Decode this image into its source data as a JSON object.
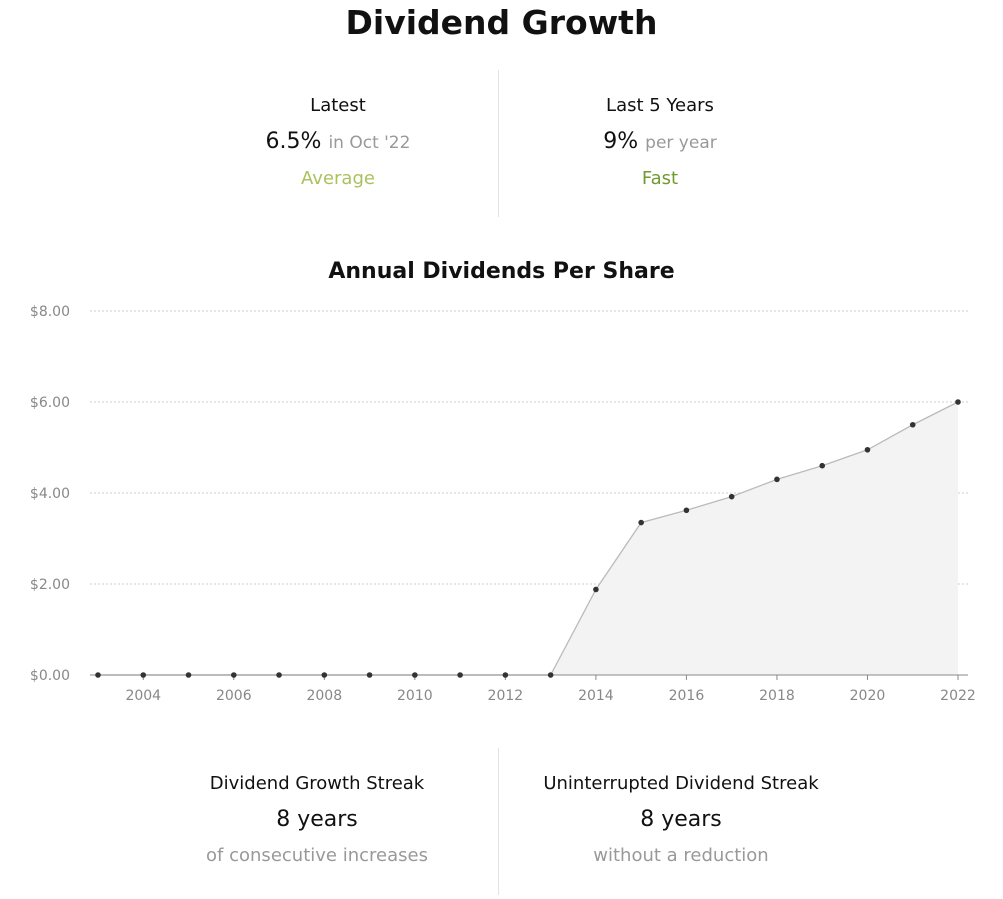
{
  "header": {
    "title": "Dividend Growth"
  },
  "stats_top": [
    {
      "label": "Latest",
      "value": "6.5%",
      "qualifier": "in Oct '22",
      "rating": "Average",
      "rating_color": "#a9c25e"
    },
    {
      "label": "Last 5 Years",
      "value": "9%",
      "qualifier": "per year",
      "rating": "Fast",
      "rating_color": "#6f9a2e"
    }
  ],
  "stats_bottom": [
    {
      "label": "Dividend Growth Streak",
      "value": "8 years",
      "sub": "of consecutive increases"
    },
    {
      "label": "Uninterrupted Dividend Streak",
      "value": "8 years",
      "sub": "without a reduction"
    }
  ],
  "chart_data": {
    "type": "area",
    "title": "Annual Dividends Per Share",
    "x": [
      2003,
      2004,
      2005,
      2006,
      2007,
      2008,
      2009,
      2010,
      2011,
      2012,
      2013,
      2014,
      2015,
      2016,
      2017,
      2018,
      2019,
      2020,
      2021,
      2022
    ],
    "series": [
      {
        "values": [
          0,
          0,
          0,
          0,
          0,
          0,
          0,
          0,
          0,
          0,
          0,
          1.88,
          3.35,
          3.62,
          3.92,
          4.3,
          4.6,
          4.95,
          5.5,
          6.0
        ]
      }
    ],
    "x_tick_labels": [
      "2004",
      "2006",
      "2008",
      "2010",
      "2012",
      "2014",
      "2016",
      "2018",
      "2020",
      "2022"
    ],
    "y_tick_labels": [
      "$0.00",
      "$2.00",
      "$4.00",
      "$6.00",
      "$8.00"
    ],
    "y_ticks": [
      0,
      2,
      4,
      6,
      8
    ],
    "x_ticks": [
      2004,
      2006,
      2008,
      2010,
      2012,
      2014,
      2016,
      2018,
      2020,
      2022
    ],
    "ylim": [
      0,
      8
    ],
    "xlim": [
      2003,
      2022
    ],
    "grid": true,
    "colors": {
      "line": "#bbbbbb",
      "fill": "#f3f3f3",
      "point": "#333333",
      "grid": "#cccccc",
      "axis": "#888888"
    }
  }
}
